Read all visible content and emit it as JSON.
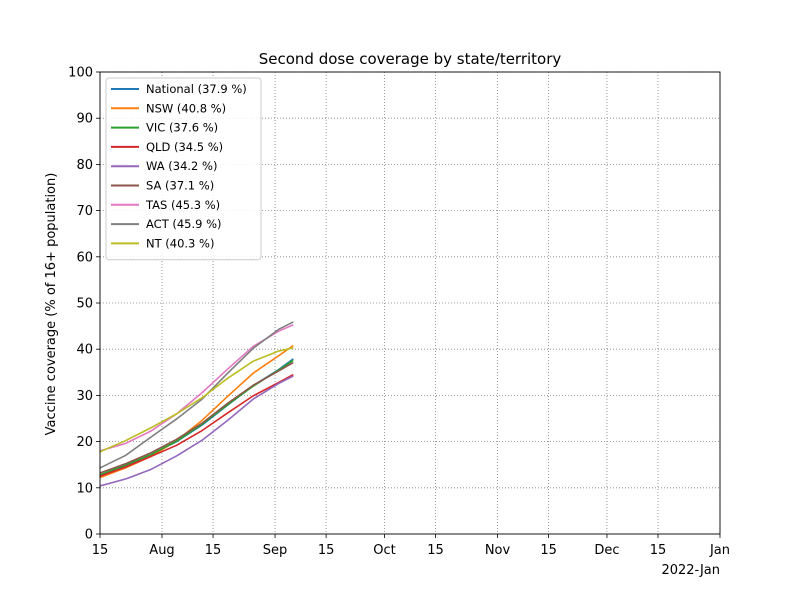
{
  "chart_data": {
    "type": "line",
    "title": "Second dose coverage by state/territory",
    "ylabel": "Vaccine coverage (% of 16+ population)",
    "xlabel": "",
    "x_offset_label": "2022-Jan",
    "xlim": [
      "2021-07-15",
      "2022-01-01"
    ],
    "ylim": [
      0,
      100
    ],
    "yticks": [
      0,
      10,
      20,
      30,
      40,
      50,
      60,
      70,
      80,
      90,
      100
    ],
    "xticks": [
      {
        "date": "2021-07-15",
        "label": "15"
      },
      {
        "date": "2021-08-01",
        "label": "Aug"
      },
      {
        "date": "2021-08-15",
        "label": "15"
      },
      {
        "date": "2021-09-01",
        "label": "Sep"
      },
      {
        "date": "2021-09-15",
        "label": "15"
      },
      {
        "date": "2021-10-01",
        "label": "Oct"
      },
      {
        "date": "2021-10-15",
        "label": "15"
      },
      {
        "date": "2021-11-01",
        "label": "Nov"
      },
      {
        "date": "2021-11-15",
        "label": "15"
      },
      {
        "date": "2021-12-01",
        "label": "Dec"
      },
      {
        "date": "2021-12-15",
        "label": "15"
      },
      {
        "date": "2022-01-01",
        "label": "Jan"
      }
    ],
    "grid": true,
    "legend_position": "top-left",
    "dates": [
      "2021-07-15",
      "2021-07-22",
      "2021-07-29",
      "2021-08-05",
      "2021-08-12",
      "2021-08-19",
      "2021-08-26",
      "2021-09-02",
      "2021-09-06"
    ],
    "series": [
      {
        "name": "National (37.9 %)",
        "color": "#1f77b4",
        "values": [
          12.6,
          14.8,
          17.2,
          20.0,
          23.6,
          27.9,
          32.1,
          35.6,
          37.9
        ]
      },
      {
        "name": "NSW (40.8 %)",
        "color": "#ff7f0e",
        "values": [
          12.2,
          14.3,
          16.8,
          20.2,
          24.6,
          29.8,
          34.8,
          38.6,
          40.8
        ]
      },
      {
        "name": "VIC (37.6 %)",
        "color": "#2ca02c",
        "values": [
          12.8,
          14.9,
          17.2,
          20.1,
          23.8,
          28.0,
          32.0,
          35.5,
          37.6
        ]
      },
      {
        "name": "QLD (34.5 %)",
        "color": "#d62728",
        "values": [
          12.5,
          14.5,
          16.8,
          19.2,
          22.4,
          26.2,
          29.9,
          32.8,
          34.5
        ]
      },
      {
        "name": "WA (34.2 %)",
        "color": "#9467bd",
        "values": [
          10.4,
          11.9,
          14.0,
          16.9,
          20.3,
          24.6,
          29.2,
          32.6,
          34.2
        ]
      },
      {
        "name": "SA (37.1 %)",
        "color": "#8c564b",
        "values": [
          13.2,
          15.2,
          17.6,
          20.5,
          24.0,
          28.3,
          32.2,
          35.3,
          37.1
        ]
      },
      {
        "name": "TAS (45.3 %)",
        "color": "#e377c2",
        "values": [
          18.0,
          19.6,
          22.3,
          26.0,
          30.6,
          35.7,
          40.6,
          43.9,
          45.3
        ]
      },
      {
        "name": "ACT (45.9 %)",
        "color": "#7f7f7f",
        "values": [
          14.3,
          17.0,
          21.0,
          24.9,
          29.2,
          34.8,
          40.2,
          44.3,
          45.9
        ]
      },
      {
        "name": "NT (40.3 %)",
        "color": "#bcbd22",
        "values": [
          17.8,
          20.2,
          23.0,
          26.0,
          29.5,
          33.7,
          37.4,
          39.6,
          40.3
        ]
      }
    ]
  }
}
